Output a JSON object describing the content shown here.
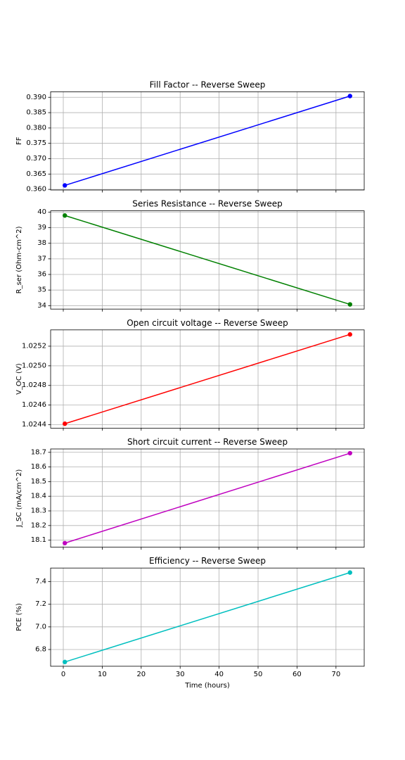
{
  "chart_data": [
    {
      "type": "line",
      "title": "Fill Factor -- Reverse Sweep",
      "ylabel": "FF",
      "xlabel": "",
      "color": "#0000ff",
      "x": [
        0.4,
        73.6
      ],
      "y": [
        0.3613,
        0.3904
      ],
      "xlim": [
        -3.25,
        77.25
      ],
      "ylim": [
        0.3598,
        0.3918
      ],
      "xticks": [
        0,
        10,
        20,
        30,
        40,
        50,
        60,
        70
      ],
      "yticks": [
        "0.360",
        "0.365",
        "0.370",
        "0.375",
        "0.380",
        "0.385",
        "0.390"
      ],
      "show_x_tick_labels": false,
      "grid": true
    },
    {
      "type": "line",
      "title": "Series Resistance -- Reverse Sweep",
      "ylabel": "R_ser (Ohm-cm^2)",
      "xlabel": "",
      "color": "#008000",
      "x": [
        0.4,
        73.6
      ],
      "y": [
        39.78,
        34.08
      ],
      "xlim": [
        -3.25,
        77.25
      ],
      "ylim": [
        33.78,
        40.08
      ],
      "xticks": [
        0,
        10,
        20,
        30,
        40,
        50,
        60,
        70
      ],
      "yticks": [
        "34",
        "35",
        "36",
        "37",
        "38",
        "39",
        "40"
      ],
      "show_x_tick_labels": false,
      "grid": true
    },
    {
      "type": "line",
      "title": "Open circuit voltage -- Reverse Sweep",
      "ylabel": "V_OC (V)",
      "xlabel": "",
      "color": "#ff0000",
      "x": [
        0.4,
        73.6
      ],
      "y": [
        1.02441,
        1.02532
      ],
      "xlim": [
        -3.25,
        77.25
      ],
      "ylim": [
        1.024365,
        1.025366
      ],
      "xticks": [
        0,
        10,
        20,
        30,
        40,
        50,
        60,
        70
      ],
      "yticks": [
        "1.0244",
        "1.0246",
        "1.0248",
        "1.0250",
        "1.0252"
      ],
      "show_x_tick_labels": false,
      "grid": true
    },
    {
      "type": "line",
      "title": "Short circuit current -- Reverse Sweep",
      "ylabel": "J_SC (mA/cm^2)",
      "xlabel": "",
      "color": "#bf00bf",
      "x": [
        0.4,
        73.6
      ],
      "y": [
        18.08,
        18.694
      ],
      "xlim": [
        -3.25,
        77.25
      ],
      "ylim": [
        18.052,
        18.723
      ],
      "xticks": [
        0,
        10,
        20,
        30,
        40,
        50,
        60,
        70
      ],
      "yticks": [
        "18.1",
        "18.2",
        "18.3",
        "18.4",
        "18.5",
        "18.6",
        "18.7"
      ],
      "show_x_tick_labels": false,
      "grid": true
    },
    {
      "type": "line",
      "title": "Efficiency -- Reverse Sweep",
      "ylabel": "PCE (%)",
      "xlabel": "Time (hours)",
      "color": "#00bfbf",
      "x": [
        0.4,
        73.6
      ],
      "y": [
        6.69,
        7.48
      ],
      "xlim": [
        -3.25,
        77.25
      ],
      "ylim": [
        6.652,
        7.52
      ],
      "xticks": [
        0,
        10,
        20,
        30,
        40,
        50,
        60,
        70
      ],
      "yticks": [
        "6.8",
        "7.0",
        "7.2",
        "7.4"
      ],
      "show_x_tick_labels": true,
      "grid": true
    }
  ]
}
